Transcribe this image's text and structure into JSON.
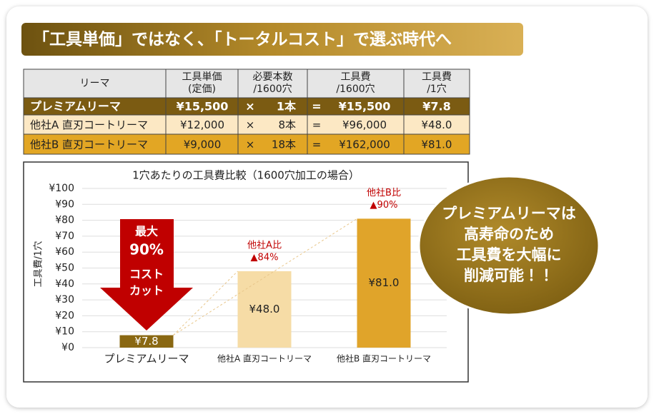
{
  "header": {
    "title": "「工具単価」ではなく、「トータルコスト」で選ぶ時代へ"
  },
  "table": {
    "header": [
      [
        "リーマ"
      ],
      [
        "工具単価",
        "(定価)"
      ],
      [
        "必要本数",
        "/1600穴"
      ],
      [
        "工具費",
        "/1600穴"
      ],
      [
        "工具費",
        "/1穴"
      ]
    ],
    "rows": [
      [
        "プレミアムリーマ",
        "¥15,500",
        "×",
        "1本",
        "=",
        "¥15,500",
        "¥7.8"
      ],
      [
        "他社A 直刃コートリーマ",
        "¥12,000",
        "×",
        "8本",
        "=",
        "¥96,000",
        "¥48.0"
      ],
      [
        "他社B 直刃コートリーマ",
        "¥9,000",
        "×",
        "18本",
        "=",
        "¥162,000",
        "¥81.0"
      ]
    ]
  },
  "chart_data": {
    "type": "bar",
    "title": "1穴あたりの工具費比較（1600穴加工の場合）",
    "y_label": "工具費/1穴",
    "categories": [
      "プレミアムリーマ",
      "他社A 直刃コートリーマ",
      "他社B 直刃コートリーマ"
    ],
    "values": [
      7.8,
      48.0,
      81.0
    ],
    "value_labels": [
      "¥7.8",
      "¥48.0",
      "¥81.0"
    ],
    "colors": [
      "#8a6812",
      "#f6dca6",
      "#e0a42a"
    ],
    "ylim": [
      0,
      100
    ],
    "yticks": [
      {
        "value": 0,
        "label": "¥0"
      },
      {
        "value": 10,
        "label": "¥10"
      },
      {
        "value": 20,
        "label": "¥20"
      },
      {
        "value": 30,
        "label": "¥30"
      },
      {
        "value": 40,
        "label": "¥40"
      },
      {
        "value": 50,
        "label": "¥50"
      },
      {
        "value": 60,
        "label": "¥60"
      },
      {
        "value": 70,
        "label": "¥70"
      },
      {
        "value": 80,
        "label": "¥80"
      },
      {
        "value": 90,
        "label": "¥90"
      },
      {
        "value": 100,
        "label": "¥100"
      }
    ],
    "grid": true,
    "comparisons": [
      null,
      [
        "他社A比",
        "▲84%"
      ],
      [
        "他社B比",
        "▲90%"
      ]
    ],
    "arrow_text": [
      "最大",
      "90%",
      "コスト",
      "カット"
    ]
  },
  "callout": [
    "プレミアムリーマは",
    "高寿命のため",
    "工具費を大幅に",
    "削減可能！！"
  ]
}
